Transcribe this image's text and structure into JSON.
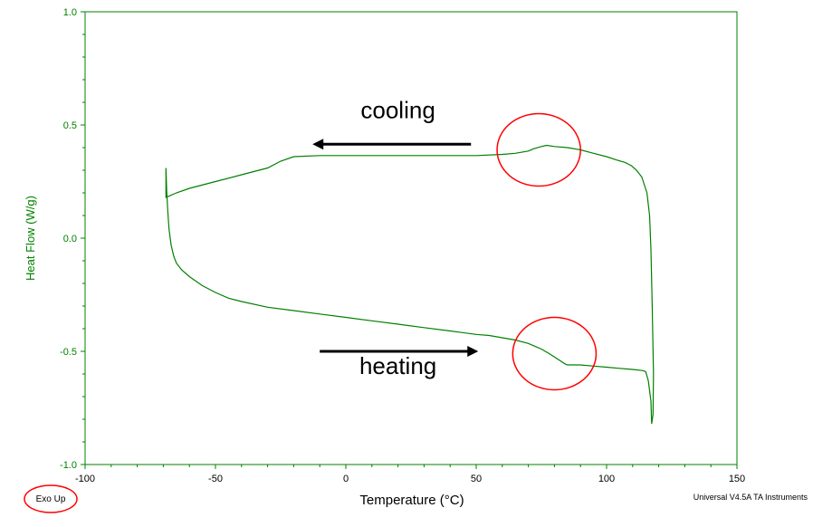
{
  "chart_data": {
    "type": "line",
    "title": "",
    "xlabel": "Temperature (°C)",
    "ylabel": "Heat Flow (W/g)",
    "xlim": [
      -100,
      150
    ],
    "ylim": [
      -1.0,
      1.0
    ],
    "x_ticks": [
      "-100",
      "-50",
      "0",
      "50",
      "100",
      "150"
    ],
    "y_ticks": [
      "-1.0",
      "-0.5",
      "0.0",
      "0.5",
      "1.0"
    ],
    "grid": false,
    "legend": "none",
    "series": [
      {
        "x": [
          -69,
          -68.7,
          -68.3,
          -67.8,
          -67,
          -66,
          -65,
          -63,
          -60,
          -55,
          -50,
          -45,
          -40,
          -30,
          -20,
          -10,
          0,
          10,
          20,
          30,
          40,
          50,
          55,
          60,
          65,
          70,
          72,
          75,
          78,
          80,
          82,
          84,
          85,
          90,
          95,
          100,
          105,
          110,
          114,
          115,
          116,
          117,
          117.3,
          117.8,
          118,
          117.5,
          117,
          116.5,
          115.5,
          113.5,
          111.5,
          109.5,
          107,
          104,
          100,
          95,
          90,
          85,
          80,
          77,
          75,
          72,
          70,
          65,
          60,
          50,
          40,
          30,
          20,
          10,
          0,
          -10,
          -20,
          -25,
          -30,
          -40,
          -50,
          -60,
          -65,
          -68,
          -69,
          -69
        ],
        "y": [
          0.31,
          0.21,
          0.12,
          0.04,
          -0.03,
          -0.08,
          -0.11,
          -0.14,
          -0.17,
          -0.21,
          -0.24,
          -0.265,
          -0.28,
          -0.305,
          -0.32,
          -0.335,
          -0.35,
          -0.365,
          -0.38,
          -0.395,
          -0.41,
          -0.425,
          -0.43,
          -0.44,
          -0.45,
          -0.465,
          -0.475,
          -0.49,
          -0.51,
          -0.525,
          -0.54,
          -0.555,
          -0.56,
          -0.56,
          -0.565,
          -0.57,
          -0.575,
          -0.58,
          -0.585,
          -0.59,
          -0.63,
          -0.72,
          -0.82,
          -0.78,
          -0.6,
          -0.3,
          -0.05,
          0.1,
          0.2,
          0.27,
          0.3,
          0.32,
          0.335,
          0.345,
          0.36,
          0.375,
          0.39,
          0.4,
          0.405,
          0.41,
          0.405,
          0.395,
          0.385,
          0.375,
          0.37,
          0.365,
          0.365,
          0.365,
          0.365,
          0.365,
          0.365,
          0.365,
          0.36,
          0.34,
          0.31,
          0.28,
          0.25,
          0.22,
          0.2,
          0.185,
          0.18,
          0.31
        ],
        "color": "#008000"
      }
    ],
    "annotations": [
      {
        "text": "cooling",
        "x": 20,
        "y": 0.53
      },
      {
        "text": "heating",
        "x": 20,
        "y": -0.6
      }
    ],
    "arrows": [
      {
        "direction": "left",
        "x_from": 48,
        "x_to": -10,
        "y": 0.415
      },
      {
        "direction": "right",
        "x_from": -10,
        "x_to": 48,
        "y": -0.5
      }
    ],
    "highlights": [
      {
        "label": "cooling-peak",
        "cx": 74,
        "cy": 0.39,
        "rx": 16,
        "ry": 0.16
      },
      {
        "label": "heating-step",
        "cx": 80,
        "cy": -0.51,
        "rx": 16,
        "ry": 0.16
      }
    ],
    "footer_left": "Exo Up",
    "footer_right": "Universal V4.5A TA Instruments",
    "colors": {
      "line": "#008000",
      "axis": "#008000",
      "annotation_circle": "#ff0000",
      "arrow": "#000000",
      "text": "#000000"
    }
  }
}
